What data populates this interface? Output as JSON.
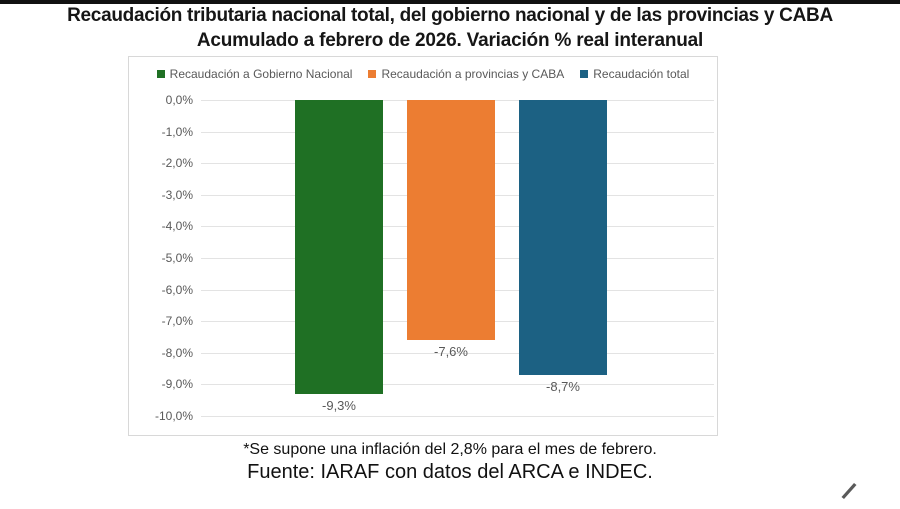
{
  "page": {
    "title_line1": "Recaudación tributaria nacional total, del gobierno nacional y de las provincias y CABA",
    "title_line2": "Acumulado a febrero de 2026. Variación % real interanual",
    "footnote": "*Se supone una inflación del 2,8% para el mes de febrero.",
    "source": "Fuente: IARAF con datos del ARCA e INDEC."
  },
  "chart_data": {
    "type": "bar",
    "title": "Recaudación tributaria nacional total, del gobierno nacional y de las provincias y CABA",
    "subtitle": "Acumulado a febrero de 2026. Variación % real interanual",
    "categories": [
      "Recaudación a Gobierno Nacional",
      "Recaudación a provincias y CABA",
      "Recaudación total"
    ],
    "values": [
      -9.3,
      -7.6,
      -8.7
    ],
    "value_labels": [
      "-9,3%",
      "-7,6%",
      "-8,7%"
    ],
    "colors": [
      "#1f7024",
      "#ec7d32",
      "#1c6183"
    ],
    "y_ticks": [
      "0,0%",
      "-1,0%",
      "-2,0%",
      "-3,0%",
      "-4,0%",
      "-5,0%",
      "-6,0%",
      "-7,0%",
      "-8,0%",
      "-9,0%",
      "-10,0%"
    ],
    "ylim": [
      0,
      -10
    ],
    "ylabel": "",
    "xlabel": "",
    "grid": true,
    "legend_position": "top"
  }
}
